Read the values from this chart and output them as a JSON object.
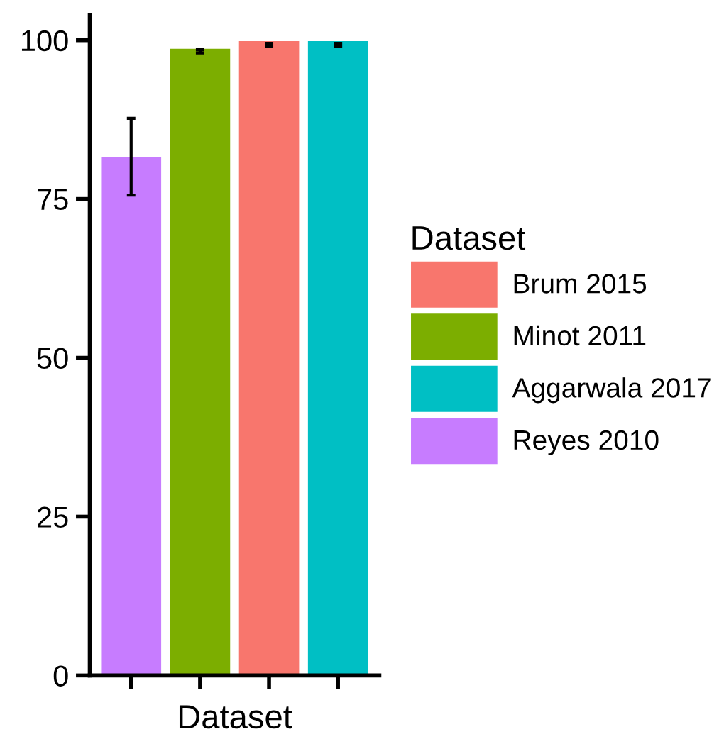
{
  "chart_data": {
    "type": "bar",
    "xlabel": "Dataset",
    "legend_title": "Dataset",
    "categories": [
      null,
      null,
      null,
      null
    ],
    "series": [
      {
        "name": "Brum 2015",
        "color": "#f8766d",
        "values": [
          null,
          null,
          100,
          null
        ],
        "errors": [
          null,
          null,
          [
            99.0,
            99.5
          ],
          null
        ]
      },
      {
        "name": "Minot 2011",
        "color": "#7cae00",
        "values": [
          null,
          98.8,
          null,
          null
        ],
        "errors": [
          null,
          [
            98.0,
            98.5
          ],
          null,
          null
        ]
      },
      {
        "name": "Aggarwala 2017",
        "color": "#00bfc4",
        "values": [
          null,
          null,
          null,
          100
        ],
        "errors": [
          null,
          null,
          null,
          [
            99.0,
            99.5
          ]
        ]
      },
      {
        "name": "Reyes 2010",
        "color": "#c77cff",
        "values": [
          81.7,
          null,
          null,
          null
        ],
        "errors": [
          [
            75.6,
            87.7
          ],
          null,
          null,
          null
        ]
      }
    ],
    "ylim": [
      0,
      104
    ],
    "yticks": [
      0,
      25,
      50,
      75,
      100
    ],
    "grid": false,
    "legend": "right"
  }
}
